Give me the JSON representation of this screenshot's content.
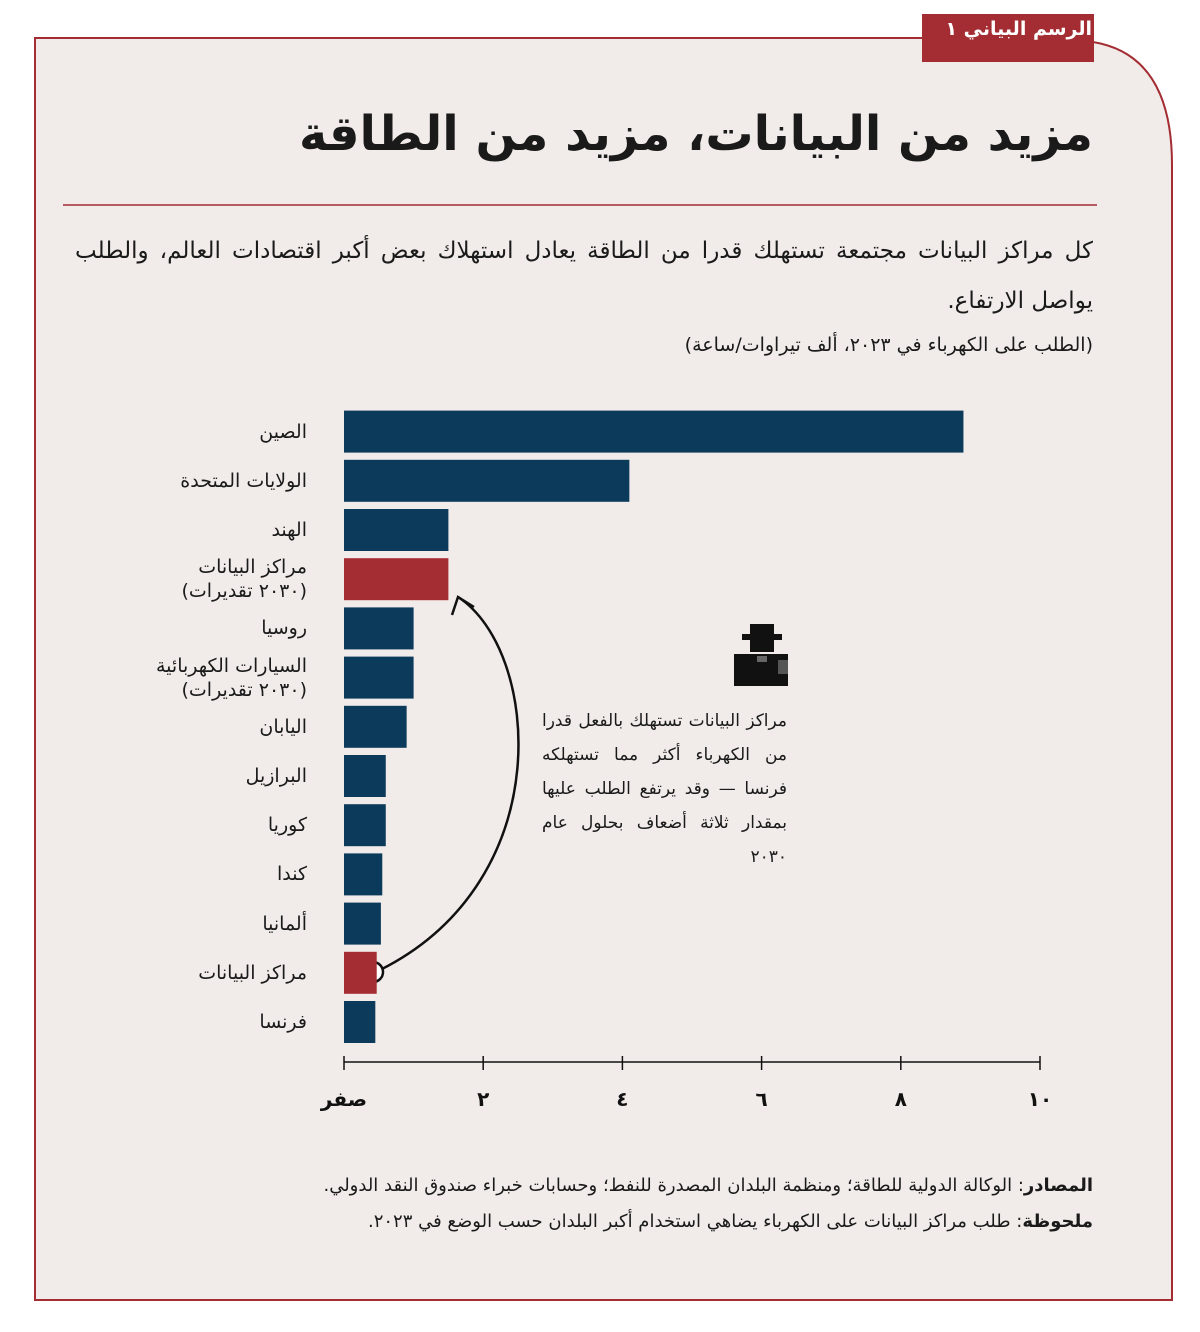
{
  "tag": "الرسم البياني ١",
  "chart_data": {
    "type": "bar",
    "orientation": "horizontal",
    "title": "مزيد من البيانات، مزيد من الطاقة",
    "subtitle": "كل مراكز البيانات مجتمعة تستهلك قدرا من الطاقة يعادل استهلاك بعض أكبر اقتصادات العالم، والطلب يواصل الارتفاع.",
    "unit_note": "(الطلب على الكهرباء في ٢٠٢٣، ألف تيراوات/ساعة)",
    "categories": [
      "الصين",
      "الولايات المتحدة",
      "الهند",
      "مراكز البيانات\n(٢٠٣٠ تقديرات)",
      "روسيا",
      "السيارات الكهربائية\n(٢٠٣٠ تقديرات)",
      "اليابان",
      "البرازيل",
      "كوريا",
      "كندا",
      "ألمانيا",
      "مراكز البيانات",
      "فرنسا"
    ],
    "values": [
      8.9,
      4.1,
      1.5,
      1.5,
      1.0,
      1.0,
      0.9,
      0.6,
      0.6,
      0.55,
      0.53,
      0.47,
      0.45
    ],
    "colors": [
      "#0c3a5b",
      "#0c3a5b",
      "#0c3a5b",
      "#a32d33",
      "#0c3a5b",
      "#0c3a5b",
      "#0c3a5b",
      "#0c3a5b",
      "#0c3a5b",
      "#0c3a5b",
      "#0c3a5b",
      "#a32d33",
      "#0c3a5b"
    ],
    "xlim": [
      0,
      10
    ],
    "xticks": [
      {
        "value": 0,
        "label": "صفر"
      },
      {
        "value": 2,
        "label": "٢"
      },
      {
        "value": 4,
        "label": "٤"
      },
      {
        "value": 6,
        "label": "٦"
      },
      {
        "value": 8,
        "label": "٨"
      },
      {
        "value": 10,
        "label": "١٠"
      }
    ],
    "annotation": "مراكز البيانات تستهلك بالفعل قدرا من الكهرباء أكثر مما تستهلكه فرنسا — وقد يرتفع الطلب عليها بمقدار ثلاثة أضعاف بحلول عام ٢٠٣٠",
    "sources_label": "المصادر",
    "sources": ": الوكالة الدولية للطاقة؛ ومنظمة البلدان المصدرة للنفط؛ وحسابات خبراء صندوق النقد الدولي.",
    "note_label": "ملحوظة",
    "note": ": طلب مراكز البيانات على الكهرباء يضاهي استخدام أكبر البلدان حسب الوضع في ٢٠٢٣."
  }
}
